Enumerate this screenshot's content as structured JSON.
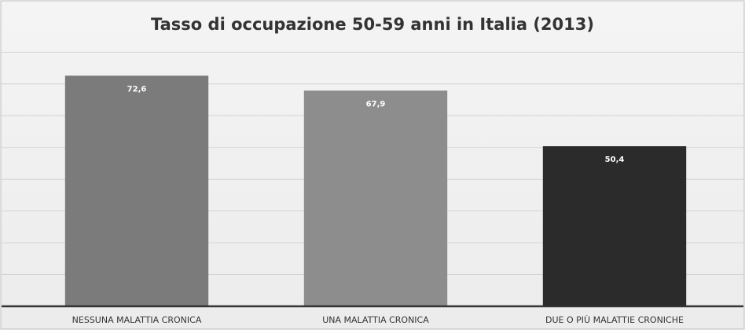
{
  "chart_data": {
    "type": "bar",
    "title": "Tasso di occupazione 50-59 anni in Italia (2013)",
    "categories": [
      "NESSUNA MALATTIA CRONICA",
      "UNA MALATTIA CRONICA",
      "DUE O PIÙ MALATTIE CRONICHE"
    ],
    "values": [
      72.6,
      67.9,
      50.4
    ],
    "value_labels": [
      "72,6",
      "67,9",
      "50,4"
    ],
    "colors": [
      "#7b7b7b",
      "#8d8d8d",
      "#2b2b2b"
    ],
    "ylim": [
      0,
      90
    ],
    "yticks": [
      0,
      10,
      20,
      30,
      40,
      50,
      60,
      70,
      80
    ],
    "grid": true
  }
}
